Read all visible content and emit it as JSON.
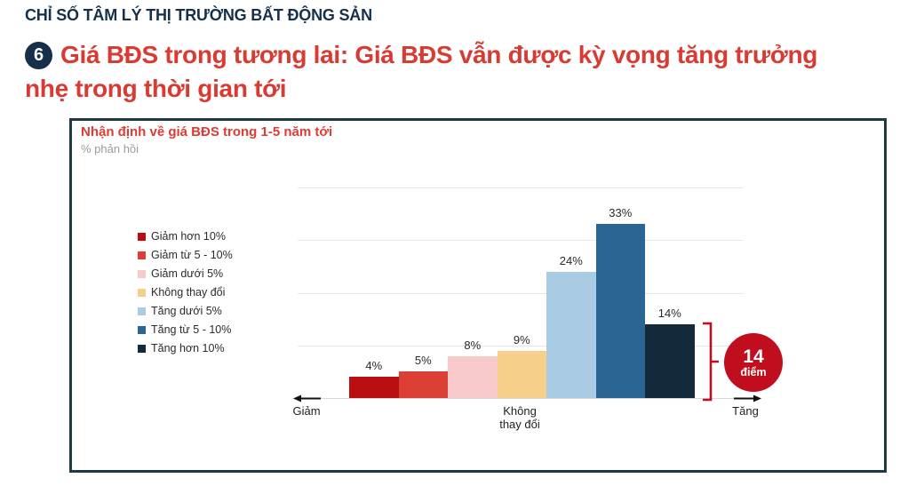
{
  "page": {
    "kicker": "CHỈ SỐ TÂM LÝ THỊ TRƯỜNG BẤT ĐỘNG SẢN",
    "badge_number": "6",
    "heading_line1": "Giá BĐS trong tương lai: Giá BĐS vẫn được kỳ vọng tăng trưởng",
    "heading_line2": "nhẹ trong thời gian tới",
    "accent_navy": "#16304a",
    "accent_red": "#d93b33"
  },
  "panel": {
    "title": "Nhận định về giá BĐS trong 1-5 năm tới",
    "subtitle": "% phản hồi",
    "border_color": "#1e3a43"
  },
  "callout": {
    "value": "14",
    "unit": "điểm",
    "color": "#c10e1e"
  },
  "chart_data": {
    "type": "bar",
    "title": "Nhận định về giá BĐS trong 1-5 năm tới",
    "unit_label": "% phản hồi",
    "categories": [
      "Giảm hơn 10%",
      "Giảm từ 5 - 10%",
      "Giảm dưới 5%",
      "Không thay đổi",
      "Tăng dưới 5%",
      "Tăng từ 5 - 10%",
      "Tăng hơn 10%"
    ],
    "values": [
      4,
      5,
      8,
      9,
      24,
      33,
      14
    ],
    "colors": [
      "#b90d0f",
      "#dc4034",
      "#f9c8ca",
      "#f6d08a",
      "#aacbe4",
      "#2a6593",
      "#132a3c"
    ],
    "value_label_suffix": "%",
    "ylim": [
      0,
      40
    ],
    "gridlines": [
      10,
      20,
      30,
      40
    ],
    "grid": true,
    "legend_position": "left",
    "axis": {
      "left_label": "Giảm",
      "center_label_line1": "Không",
      "center_label_line2": "thay đổi",
      "right_label": "Tăng"
    }
  }
}
